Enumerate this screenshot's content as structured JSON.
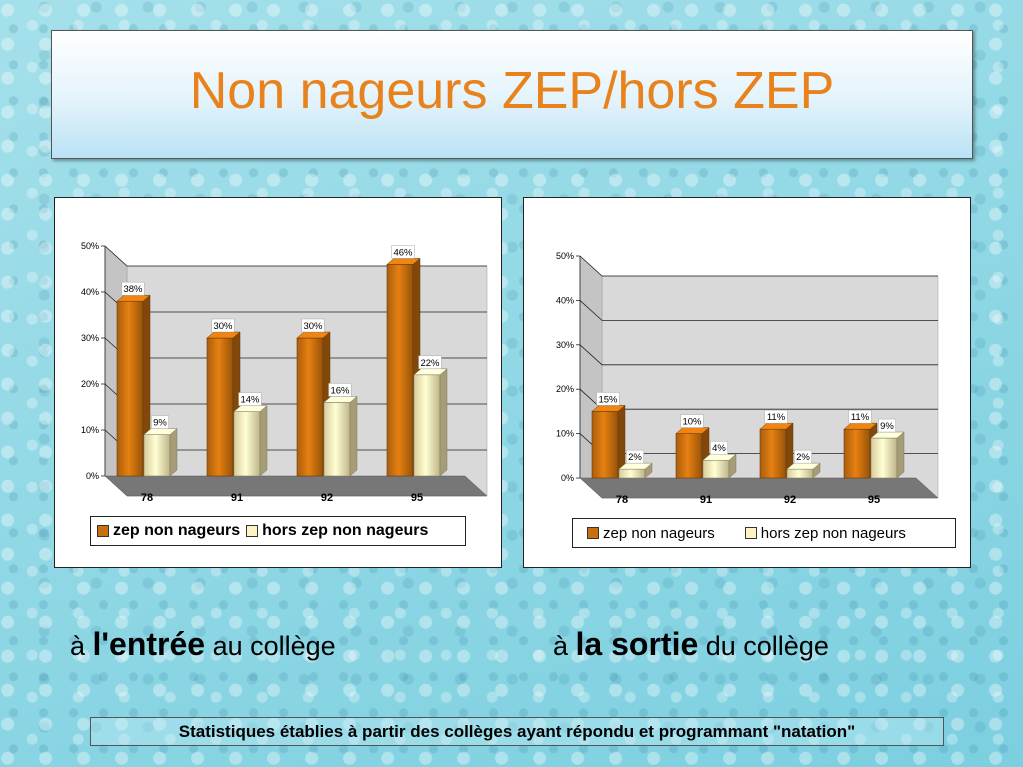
{
  "slide": {
    "title": "Non nageurs ZEP/hors ZEP",
    "footnote": "Statistiques établies à partir des collèges ayant répondu et programmant \"natation\""
  },
  "captions": {
    "left": {
      "prefix": "à ",
      "bold": "l'entrée",
      "suffix": " au collège"
    },
    "right": {
      "prefix": "à ",
      "bold": "la sortie",
      "suffix": " du collège"
    }
  },
  "colors": {
    "zep_bar": "#c86f0f",
    "hors_bar": "#fff0b8",
    "title": "#e8821c",
    "floor": "#777777"
  },
  "chart_data": [
    {
      "type": "bar",
      "categories": [
        "78",
        "91",
        "92",
        "95"
      ],
      "series": [
        {
          "name": "zep non nageurs",
          "values": [
            38,
            30,
            30,
            46
          ],
          "labels": [
            "38%",
            "30%",
            "30%",
            "46%"
          ]
        },
        {
          "name": "hors zep non nageurs",
          "values": [
            9,
            14,
            16,
            22
          ],
          "labels": [
            "9%",
            "14%",
            "16%",
            "22%"
          ]
        }
      ],
      "yticks": [
        "0%",
        "10%",
        "20%",
        "30%",
        "40%",
        "50%"
      ],
      "ylim": [
        0,
        50
      ],
      "grid": true,
      "legend": "bottom",
      "three_d": true
    },
    {
      "type": "bar",
      "categories": [
        "78",
        "91",
        "92",
        "95"
      ],
      "series": [
        {
          "name": "zep non nageurs",
          "values": [
            15,
            10,
            11,
            11
          ],
          "labels": [
            "15%",
            "10%",
            "11%",
            "11%"
          ]
        },
        {
          "name": "hors zep non nageurs",
          "values": [
            2,
            4,
            2,
            9
          ],
          "labels": [
            "2%",
            "4%",
            "2%",
            "9%"
          ]
        }
      ],
      "yticks": [
        "0%",
        "10%",
        "20%",
        "30%",
        "40%",
        "50%"
      ],
      "ylim": [
        0,
        50
      ],
      "grid": true,
      "legend": "bottom",
      "three_d": true
    }
  ]
}
